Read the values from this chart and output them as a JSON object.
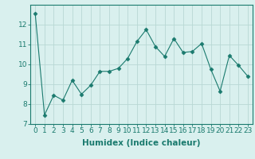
{
  "x": [
    0,
    1,
    2,
    3,
    4,
    5,
    6,
    7,
    8,
    9,
    10,
    11,
    12,
    13,
    14,
    15,
    16,
    17,
    18,
    19,
    20,
    21,
    22,
    23
  ],
  "y": [
    12.55,
    7.45,
    8.45,
    8.2,
    9.2,
    8.5,
    8.95,
    9.65,
    9.65,
    9.8,
    10.3,
    11.15,
    11.75,
    10.9,
    10.4,
    11.3,
    10.6,
    10.65,
    11.05,
    9.75,
    8.65,
    10.45,
    9.95,
    9.4
  ],
  "xlabel": "Humidex (Indice chaleur)",
  "xlim": [
    -0.5,
    23.5
  ],
  "ylim": [
    7,
    13
  ],
  "yticks": [
    7,
    8,
    9,
    10,
    11,
    12
  ],
  "xticks": [
    0,
    1,
    2,
    3,
    4,
    5,
    6,
    7,
    8,
    9,
    10,
    11,
    12,
    13,
    14,
    15,
    16,
    17,
    18,
    19,
    20,
    21,
    22,
    23
  ],
  "line_color": "#1a7a6e",
  "marker": "D",
  "marker_size": 2.5,
  "bg_color": "#d9f0ee",
  "grid_color": "#b8d8d4",
  "tick_label_fontsize": 6.5,
  "xlabel_fontsize": 7.5
}
